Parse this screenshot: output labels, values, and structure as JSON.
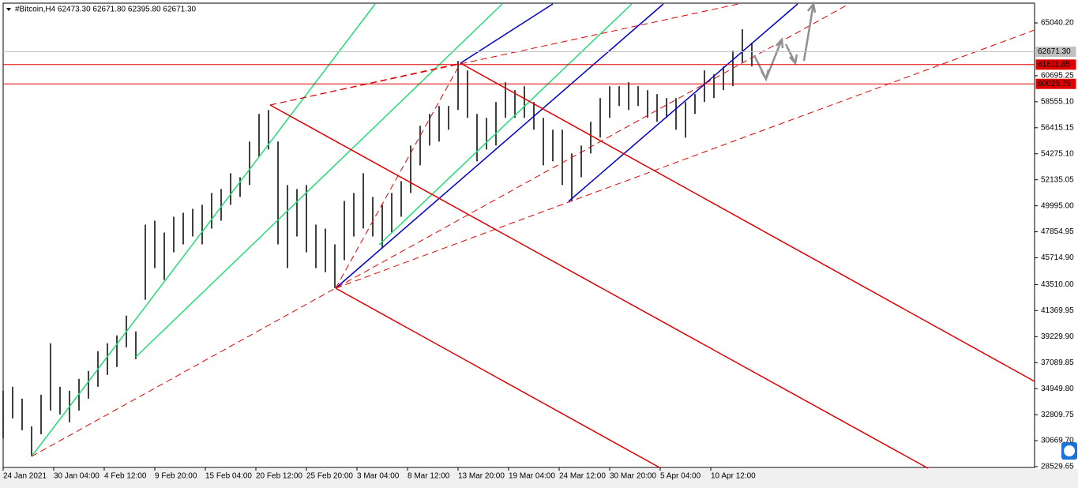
{
  "chart_data": {
    "type": "hilo",
    "title": "#Bitcoin,H4  62473.30 62671.80 62395.80 62671.30",
    "color": "#000000",
    "x": [
      0,
      6,
      12,
      18,
      24,
      30,
      36,
      42,
      48,
      54,
      60,
      66,
      72,
      78,
      84,
      90,
      96,
      102,
      108,
      114,
      120,
      126,
      132,
      138,
      144,
      150,
      156,
      162,
      168,
      174,
      180,
      186,
      192,
      198,
      204,
      210,
      216,
      222,
      228,
      234,
      240,
      246,
      252,
      258,
      264,
      270,
      276,
      282,
      288,
      294,
      300,
      306,
      312,
      318,
      324,
      330,
      336,
      342,
      348,
      354,
      360,
      366,
      372,
      378,
      384,
      390,
      396,
      402,
      408,
      414,
      420,
      426,
      432,
      438,
      444,
      450,
      456,
      462,
      468,
      474
    ],
    "high": [
      34778,
      35103,
      34127,
      31849,
      34452,
      38683,
      35103,
      34778,
      35754,
      36405,
      38032,
      38683,
      39333,
      40960,
      39659,
      48445,
      48770,
      47794,
      49095,
      49421,
      49746,
      50072,
      51048,
      51373,
      52675,
      52349,
      55278,
      57556,
      57881,
      55278,
      51699,
      51373,
      51699,
      48445,
      48119,
      46818,
      50397,
      51048,
      52675,
      50722,
      50072,
      51048,
      52024,
      54953,
      56580,
      57556,
      58207,
      58207,
      61916,
      61135,
      57556,
      57230,
      58532,
      60159,
      59508,
      59834,
      58532,
      57230,
      56254,
      56254,
      54302,
      54953,
      56905,
      58857,
      59834,
      59834,
      60159,
      59834,
      59508,
      59183,
      58857,
      58857,
      58532,
      59183,
      61135,
      60810,
      61461,
      62762,
      64519,
      63413
    ],
    "low": [
      30873,
      32500,
      31524,
      29376,
      31198,
      33151,
      32825,
      32175,
      33151,
      34127,
      35103,
      36079,
      36730,
      38357,
      37381,
      42262,
      44865,
      43889,
      46167,
      46818,
      47468,
      46818,
      48119,
      48770,
      50072,
      50722,
      51699,
      53976,
      54627,
      46818,
      44865,
      47468,
      46167,
      44865,
      44540,
      43238,
      45516,
      47468,
      48119,
      47468,
      46492,
      47794,
      49095,
      51048,
      53326,
      54953,
      55278,
      56254,
      57881,
      57230,
      53651,
      54627,
      54953,
      57230,
      57230,
      57230,
      56254,
      53326,
      53651,
      51699,
      50397,
      52349,
      54302,
      55603,
      57230,
      58207,
      57881,
      58207,
      57230,
      56905,
      57230,
      56254,
      55603,
      57556,
      58532,
      58857,
      59508,
      59834,
      61786,
      61461
    ],
    "xlim": [
      0,
      653
    ],
    "xticks": [
      {
        "value": 0,
        "label": "24 Jan 2021"
      },
      {
        "value": 32,
        "label": "30 Jan 04:00"
      },
      {
        "value": 64,
        "label": "4 Feb 12:00"
      },
      {
        "value": 96,
        "label": "9 Feb 20:00"
      },
      {
        "value": 128,
        "label": "15 Feb 04:00"
      },
      {
        "value": 160,
        "label": "20 Feb 12:00"
      },
      {
        "value": 192,
        "label": "25 Feb 20:00"
      },
      {
        "value": 224,
        "label": "3 Mar 04:00"
      },
      {
        "value": 256,
        "label": "8 Mar 12:00"
      },
      {
        "value": 288,
        "label": "13 Mar 20:00"
      },
      {
        "value": 320,
        "label": "19 Mar 04:00"
      },
      {
        "value": 352,
        "label": "24 Mar 12:00"
      },
      {
        "value": 384,
        "label": "30 Mar 20:00"
      },
      {
        "value": 416,
        "label": "5 Apr 04:00"
      },
      {
        "value": 448,
        "label": "10 Apr 12:00"
      }
    ],
    "ylim": [
      28465,
      66667
    ],
    "yticks": [
      {
        "value": 65040.2,
        "label": "65040.20"
      },
      {
        "value": 60695.25,
        "label": "60695.25"
      },
      {
        "value": 58555.1,
        "label": "58555.10"
      },
      {
        "value": 56415.15,
        "label": "56415.15"
      },
      {
        "value": 54275.1,
        "label": "54275.10"
      },
      {
        "value": 52135.05,
        "label": "52135.05"
      },
      {
        "value": 49995,
        "label": "49995.00"
      },
      {
        "value": 47854.95,
        "label": "47854.95"
      },
      {
        "value": 45714.9,
        "label": "45714.90"
      },
      {
        "value": 43510,
        "label": "43510.00"
      },
      {
        "value": 41369.95,
        "label": "41369.95"
      },
      {
        "value": 39229.9,
        "label": "39229.90"
      },
      {
        "value": 37089.85,
        "label": "37089.85"
      },
      {
        "value": 34949.8,
        "label": "34949.80"
      },
      {
        "value": 32809.75,
        "label": "32809.75"
      },
      {
        "value": 30669.7,
        "label": "30669.70"
      },
      {
        "value": 28529.65,
        "label": "28529.65"
      }
    ],
    "levels": [
      {
        "value": 62671.3,
        "label": "62671.30",
        "color": "#c0c0c0",
        "text_color": "#000000"
      },
      {
        "value": 61611.85,
        "label": "61611.85",
        "color": "#e00000",
        "text_color": "#ffffff"
      },
      {
        "value": 60025.75,
        "label": "60025.75",
        "color": "#e00000",
        "text_color": "#ffffff"
      }
    ]
  }
}
